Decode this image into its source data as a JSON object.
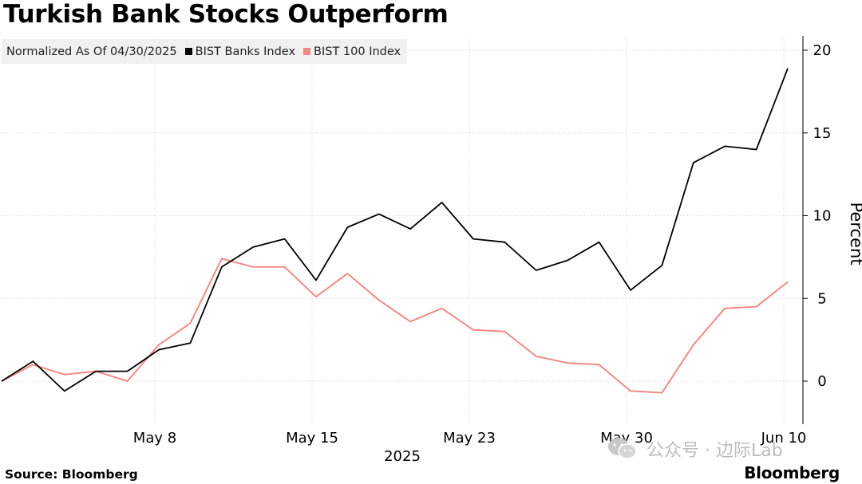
{
  "title": "Turkish Bank Stocks Outperform",
  "legend": {
    "note": "Normalized As Of 04/30/2025",
    "entries": [
      {
        "label": "BIST Banks Index",
        "color": "#000000"
      },
      {
        "label": "BIST 100 Index",
        "color": "#f08a85"
      }
    ]
  },
  "footer": {
    "source": "Source: Bloomberg",
    "brand": "Bloomberg"
  },
  "watermark": {
    "icon": "wechat-icon",
    "text": "公众号 · 边际Lab"
  },
  "chart_data": {
    "type": "line",
    "title": "Turkish Bank Stocks Outperform",
    "ylabel": "Percent",
    "xlabel": "2025",
    "ylim": [
      -2.6,
      21.5
    ],
    "yticks": [
      0,
      5,
      10,
      15,
      20
    ],
    "x_tick_labels": [
      "May 8",
      "May 15",
      "May 23",
      "May 30",
      "Jun 10"
    ],
    "x_tick_index": [
      5,
      10,
      15,
      20,
      25
    ],
    "year_label": "2025",
    "grid": true,
    "legend_position": "top-left",
    "series": [
      {
        "name": "BIST Banks Index",
        "color": "#000000",
        "values": [
          0,
          1.2,
          -0.6,
          0.6,
          0.6,
          1.9,
          2.3,
          6.9,
          8.1,
          8.6,
          6.1,
          9.3,
          10.1,
          9.2,
          10.8,
          8.6,
          8.4,
          6.7,
          7.3,
          8.4,
          5.5,
          7.0,
          13.2,
          14.2,
          14.0,
          18.9
        ]
      },
      {
        "name": "BIST 100 Index",
        "color": "#f08a85",
        "values": [
          0,
          1.0,
          0.4,
          0.6,
          0.0,
          2.2,
          3.5,
          7.4,
          6.9,
          6.9,
          5.1,
          6.5,
          4.9,
          3.6,
          4.4,
          3.1,
          3.0,
          1.5,
          1.1,
          1.0,
          -0.6,
          -0.7,
          2.2,
          4.4,
          4.5,
          6.0
        ]
      }
    ]
  }
}
